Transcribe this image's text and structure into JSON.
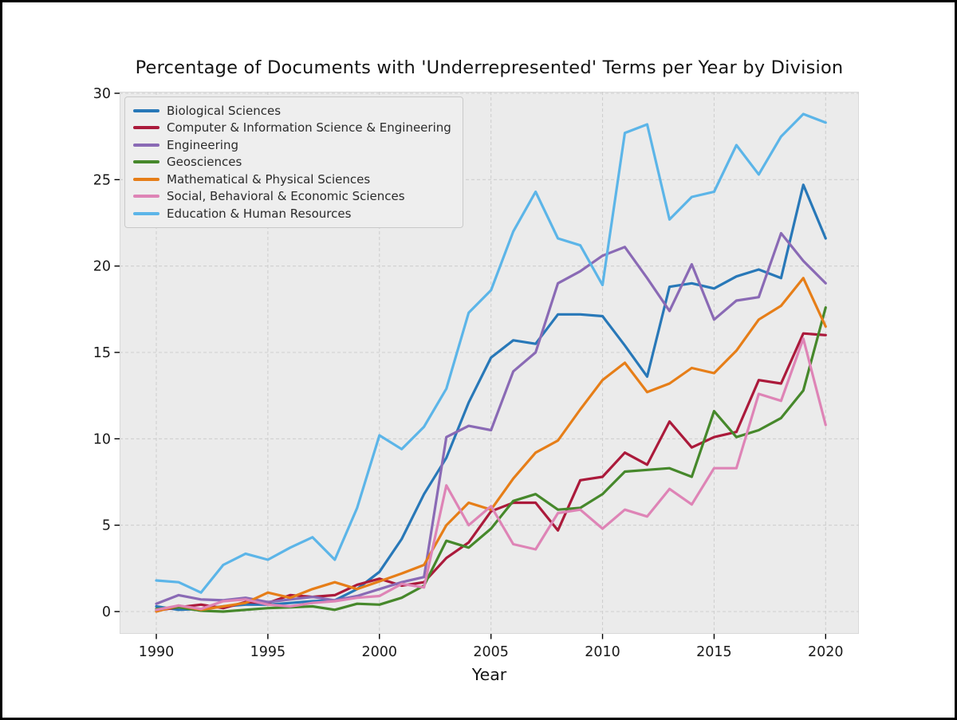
{
  "chart_data": {
    "type": "line",
    "title": "Percentage of Documents with 'Underrepresented' Terms per Year by Division",
    "xlabel": "Year",
    "ylabel": "",
    "x": [
      1990,
      1991,
      1992,
      1993,
      1994,
      1995,
      1996,
      1997,
      1998,
      1999,
      2000,
      2001,
      2002,
      2003,
      2004,
      2005,
      2006,
      2007,
      2008,
      2009,
      2010,
      2011,
      2012,
      2013,
      2014,
      2015,
      2016,
      2017,
      2018,
      2019,
      2020
    ],
    "xticks": [
      1990,
      1995,
      2000,
      2005,
      2010,
      2015,
      2020
    ],
    "yticks": [
      0,
      5,
      10,
      15,
      20,
      25,
      30
    ],
    "xlim": [
      1988.4,
      2021.5
    ],
    "ylim": [
      -1.3,
      30.0
    ],
    "grid": "dashed",
    "legend_position": "upper-left",
    "series": [
      {
        "name": "Biological Sciences",
        "color": "#2878b8",
        "values": [
          0.3,
          0.1,
          0.15,
          0.3,
          0.4,
          0.4,
          0.5,
          0.6,
          0.65,
          1.3,
          2.3,
          4.2,
          6.8,
          8.9,
          12.1,
          14.7,
          15.7,
          15.5,
          17.2,
          17.2,
          17.1,
          15.4,
          13.6,
          18.8,
          19.0,
          18.7,
          19.4,
          19.8,
          19.3,
          24.7,
          21.6
        ]
      },
      {
        "name": "Computer & Information Science & Engineering",
        "color": "#ab1a3b",
        "values": [
          0.05,
          0.25,
          0.4,
          0.2,
          0.55,
          0.5,
          0.95,
          0.85,
          0.95,
          1.55,
          1.9,
          1.5,
          1.7,
          3.1,
          4.0,
          5.8,
          6.3,
          6.3,
          4.7,
          7.6,
          7.8,
          9.2,
          8.5,
          11.0,
          9.5,
          10.1,
          10.4,
          13.4,
          13.2,
          16.1,
          16.0
        ]
      },
      {
        "name": "Engineering",
        "color": "#8a6ab5",
        "values": [
          0.45,
          0.95,
          0.7,
          0.65,
          0.8,
          0.55,
          0.7,
          0.85,
          0.65,
          0.9,
          1.3,
          1.7,
          2.0,
          10.1,
          10.75,
          10.5,
          13.9,
          15.0,
          19.0,
          19.7,
          20.6,
          21.1,
          19.3,
          17.4,
          20.1,
          16.9,
          18.0,
          18.2,
          21.9,
          20.3,
          19.0
        ]
      },
      {
        "name": "Geosciences",
        "color": "#46882b",
        "values": [
          0.15,
          0.25,
          0.05,
          0.0,
          0.1,
          0.2,
          0.25,
          0.3,
          0.1,
          0.45,
          0.4,
          0.8,
          1.5,
          4.1,
          3.7,
          4.8,
          6.4,
          6.8,
          5.9,
          6.0,
          6.8,
          8.1,
          8.2,
          8.3,
          7.8,
          11.6,
          10.1,
          10.5,
          11.2,
          12.8,
          17.6
        ]
      },
      {
        "name": "Mathematical & Physical Sciences",
        "color": "#e67e18",
        "values": [
          0.0,
          0.35,
          0.1,
          0.3,
          0.5,
          1.1,
          0.8,
          1.3,
          1.7,
          1.3,
          1.75,
          2.2,
          2.7,
          5.0,
          6.3,
          5.9,
          7.7,
          9.2,
          9.9,
          11.7,
          13.4,
          14.4,
          12.7,
          13.2,
          14.1,
          13.8,
          15.1,
          16.9,
          17.7,
          19.3,
          16.5
        ]
      },
      {
        "name": "Social, Behavioral & Economic Sciences",
        "color": "#de84b6",
        "values": [
          0.1,
          0.35,
          0.15,
          0.6,
          0.7,
          0.4,
          0.3,
          0.5,
          0.6,
          0.8,
          0.9,
          1.6,
          1.4,
          7.3,
          5.0,
          6.1,
          3.9,
          3.6,
          5.7,
          5.9,
          4.8,
          5.9,
          5.5,
          7.1,
          6.2,
          8.3,
          8.3,
          12.6,
          12.2,
          15.8,
          10.8
        ]
      },
      {
        "name": "Education & Human Resources",
        "color": "#5cb5e8",
        "values": [
          1.8,
          1.7,
          1.1,
          2.7,
          3.35,
          3.0,
          3.7,
          4.3,
          3.0,
          6.0,
          10.2,
          9.4,
          10.7,
          12.9,
          17.3,
          18.6,
          22.0,
          24.3,
          21.6,
          21.2,
          18.9,
          27.7,
          28.2,
          22.7,
          24.0,
          24.3,
          27.0,
          25.3,
          27.5,
          28.8,
          28.3
        ]
      }
    ]
  },
  "colors": {
    "figure_bg": "#ffffff",
    "plot_bg": "#ebebeb",
    "grid": "#cfcfcf",
    "tick": "#000000",
    "text": "#141414",
    "legend_bg": "#eeeeee",
    "legend_border": "#c9c9c9",
    "outer_border": "#000000"
  }
}
